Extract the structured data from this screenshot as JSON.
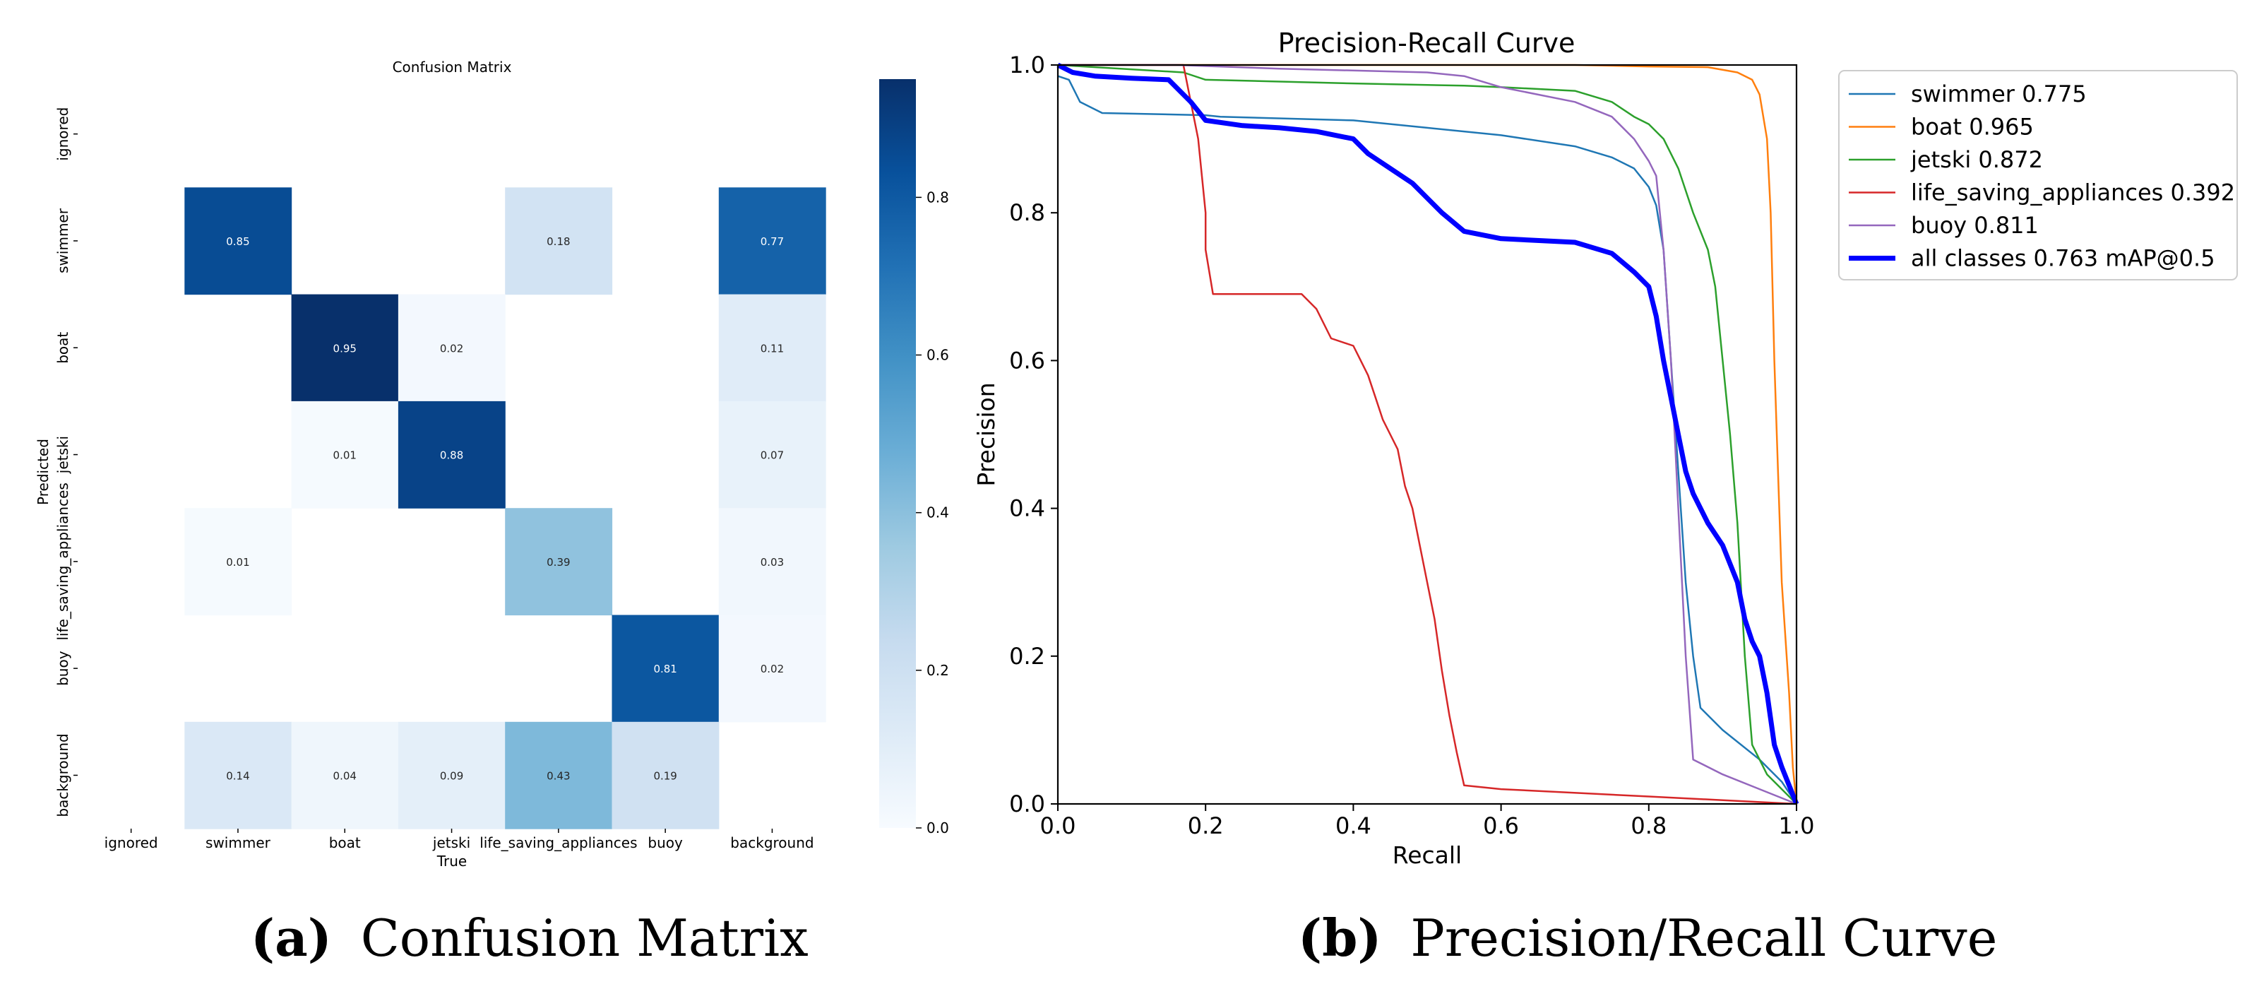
{
  "captions": {
    "a_letter": "(a)",
    "a_text": "Confusion Matrix",
    "b_letter": "(b)",
    "b_text": "Precision/Recall Curve"
  },
  "chart_data": [
    {
      "type": "heatmap",
      "title": "Confusion Matrix",
      "xlabel": "True",
      "ylabel": "Predicted",
      "x_categories": [
        "ignored",
        "swimmer",
        "boat",
        "jetski",
        "life_saving_appliances",
        "buoy",
        "background"
      ],
      "y_categories": [
        "ignored",
        "swimmer",
        "boat",
        "jetski",
        "life_saving_appliances",
        "buoy",
        "background"
      ],
      "values": [
        [
          null,
          null,
          null,
          null,
          null,
          null,
          null
        ],
        [
          null,
          0.85,
          null,
          null,
          0.18,
          null,
          0.77
        ],
        [
          null,
          null,
          0.95,
          0.02,
          null,
          null,
          0.11
        ],
        [
          null,
          null,
          0.01,
          0.88,
          null,
          null,
          0.07
        ],
        [
          null,
          0.01,
          null,
          null,
          0.39,
          null,
          0.03
        ],
        [
          null,
          null,
          null,
          null,
          null,
          0.81,
          0.02
        ],
        [
          null,
          0.14,
          0.04,
          0.09,
          0.43,
          0.19,
          null
        ]
      ],
      "value_labels": [
        [
          "",
          "",
          "",
          "",
          "",
          "",
          ""
        ],
        [
          "",
          "0.85",
          "",
          "",
          "0.18",
          "",
          "0.77"
        ],
        [
          "",
          "",
          "0.95",
          "0.02",
          "",
          "",
          "0.11"
        ],
        [
          "",
          "",
          "0.01",
          "0.88",
          "",
          "",
          "0.07"
        ],
        [
          "",
          "0.01",
          "",
          "",
          "0.39",
          "",
          "0.03"
        ],
        [
          "",
          "",
          "",
          "",
          "",
          "0.81",
          "0.02"
        ],
        [
          "",
          "0.14",
          "0.04",
          "0.09",
          "0.43",
          "0.19",
          ""
        ]
      ],
      "colorbar": {
        "range": [
          0,
          0.95
        ],
        "ticks": [
          0.0,
          0.2,
          0.4,
          0.6,
          0.8
        ],
        "tick_labels": [
          "0.0",
          "0.2",
          "0.4",
          "0.6",
          "0.8"
        ],
        "colormap": "Blues"
      }
    },
    {
      "type": "line",
      "title": "Precision-Recall Curve",
      "xlabel": "Recall",
      "ylabel": "Precision",
      "xlim": [
        0,
        1
      ],
      "ylim": [
        0,
        1
      ],
      "x_ticks": [
        0.0,
        0.2,
        0.4,
        0.6,
        0.8,
        1.0
      ],
      "x_tick_labels": [
        "0.0",
        "0.2",
        "0.4",
        "0.6",
        "0.8",
        "1.0"
      ],
      "y_ticks": [
        0.0,
        0.2,
        0.4,
        0.6,
        0.8,
        1.0
      ],
      "y_tick_labels": [
        "0.0",
        "0.2",
        "0.4",
        "0.6",
        "0.8",
        "1.0"
      ],
      "legend_placement": "outside-right-top",
      "series": [
        {
          "name": "swimmer 0.775",
          "color": "#1f77b4",
          "width": 2.5,
          "points": [
            [
              0,
              0.985
            ],
            [
              0.015,
              0.98
            ],
            [
              0.03,
              0.95
            ],
            [
              0.06,
              0.935
            ],
            [
              0.2,
              0.932
            ],
            [
              0.22,
              0.93
            ],
            [
              0.4,
              0.925
            ],
            [
              0.5,
              0.915
            ],
            [
              0.6,
              0.905
            ],
            [
              0.7,
              0.89
            ],
            [
              0.75,
              0.875
            ],
            [
              0.78,
              0.86
            ],
            [
              0.8,
              0.835
            ],
            [
              0.81,
              0.81
            ],
            [
              0.82,
              0.75
            ],
            [
              0.83,
              0.6
            ],
            [
              0.84,
              0.45
            ],
            [
              0.85,
              0.3
            ],
            [
              0.86,
              0.2
            ],
            [
              0.87,
              0.13
            ],
            [
              0.9,
              0.1
            ],
            [
              0.95,
              0.06
            ],
            [
              0.98,
              0.03
            ],
            [
              1.0,
              0.0
            ]
          ]
        },
        {
          "name": "boat 0.965",
          "color": "#ff7f0e",
          "width": 2.5,
          "points": [
            [
              0,
              1.0
            ],
            [
              0.7,
              1.0
            ],
            [
              0.8,
              0.998
            ],
            [
              0.88,
              0.997
            ],
            [
              0.92,
              0.99
            ],
            [
              0.94,
              0.98
            ],
            [
              0.95,
              0.96
            ],
            [
              0.96,
              0.9
            ],
            [
              0.965,
              0.8
            ],
            [
              0.97,
              0.6
            ],
            [
              0.975,
              0.45
            ],
            [
              0.98,
              0.3
            ],
            [
              0.99,
              0.15
            ],
            [
              0.995,
              0.05
            ],
            [
              1.0,
              0.0
            ]
          ]
        },
        {
          "name": "jetski 0.872",
          "color": "#2ca02c",
          "width": 2.5,
          "points": [
            [
              0,
              1.0
            ],
            [
              0.17,
              0.99
            ],
            [
              0.2,
              0.98
            ],
            [
              0.4,
              0.975
            ],
            [
              0.55,
              0.972
            ],
            [
              0.6,
              0.97
            ],
            [
              0.7,
              0.965
            ],
            [
              0.75,
              0.95
            ],
            [
              0.78,
              0.93
            ],
            [
              0.8,
              0.92
            ],
            [
              0.82,
              0.9
            ],
            [
              0.84,
              0.86
            ],
            [
              0.86,
              0.8
            ],
            [
              0.88,
              0.75
            ],
            [
              0.89,
              0.7
            ],
            [
              0.9,
              0.6
            ],
            [
              0.91,
              0.5
            ],
            [
              0.92,
              0.38
            ],
            [
              0.93,
              0.2
            ],
            [
              0.94,
              0.08
            ],
            [
              0.96,
              0.04
            ],
            [
              0.98,
              0.02
            ],
            [
              1.0,
              0.0
            ]
          ]
        },
        {
          "name": "life_saving_appliances 0.392",
          "color": "#d62728",
          "width": 2.5,
          "points": [
            [
              0,
              1.0
            ],
            [
              0.17,
              1.0
            ],
            [
              0.19,
              0.9
            ],
            [
              0.2,
              0.8
            ],
            [
              0.2,
              0.75
            ],
            [
              0.21,
              0.69
            ],
            [
              0.3,
              0.69
            ],
            [
              0.33,
              0.69
            ],
            [
              0.35,
              0.67
            ],
            [
              0.37,
              0.63
            ],
            [
              0.4,
              0.62
            ],
            [
              0.41,
              0.6
            ],
            [
              0.42,
              0.58
            ],
            [
              0.43,
              0.55
            ],
            [
              0.44,
              0.52
            ],
            [
              0.45,
              0.5
            ],
            [
              0.46,
              0.48
            ],
            [
              0.47,
              0.43
            ],
            [
              0.48,
              0.4
            ],
            [
              0.49,
              0.35
            ],
            [
              0.5,
              0.3
            ],
            [
              0.51,
              0.25
            ],
            [
              0.52,
              0.18
            ],
            [
              0.53,
              0.12
            ],
            [
              0.54,
              0.07
            ],
            [
              0.55,
              0.025
            ],
            [
              0.6,
              0.02
            ],
            [
              0.8,
              0.01
            ],
            [
              1.0,
              0.0
            ]
          ]
        },
        {
          "name": "buoy 0.811",
          "color": "#9467bd",
          "width": 2.5,
          "points": [
            [
              0,
              1.0
            ],
            [
              0.16,
              1.0
            ],
            [
              0.3,
              0.995
            ],
            [
              0.5,
              0.99
            ],
            [
              0.55,
              0.985
            ],
            [
              0.6,
              0.97
            ],
            [
              0.7,
              0.95
            ],
            [
              0.75,
              0.93
            ],
            [
              0.78,
              0.9
            ],
            [
              0.8,
              0.87
            ],
            [
              0.81,
              0.85
            ],
            [
              0.82,
              0.75
            ],
            [
              0.83,
              0.6
            ],
            [
              0.84,
              0.4
            ],
            [
              0.85,
              0.2
            ],
            [
              0.86,
              0.06
            ],
            [
              0.9,
              0.04
            ],
            [
              0.95,
              0.02
            ],
            [
              1.0,
              0.0
            ]
          ]
        },
        {
          "name": "all classes 0.763 mAP@0.5",
          "color": "#0000ff",
          "width": 7,
          "points": [
            [
              0,
              1.0
            ],
            [
              0.02,
              0.99
            ],
            [
              0.05,
              0.985
            ],
            [
              0.1,
              0.982
            ],
            [
              0.15,
              0.98
            ],
            [
              0.18,
              0.95
            ],
            [
              0.2,
              0.925
            ],
            [
              0.25,
              0.918
            ],
            [
              0.3,
              0.915
            ],
            [
              0.35,
              0.91
            ],
            [
              0.4,
              0.9
            ],
            [
              0.42,
              0.88
            ],
            [
              0.45,
              0.86
            ],
            [
              0.48,
              0.84
            ],
            [
              0.5,
              0.82
            ],
            [
              0.52,
              0.8
            ],
            [
              0.55,
              0.775
            ],
            [
              0.6,
              0.765
            ],
            [
              0.7,
              0.76
            ],
            [
              0.75,
              0.745
            ],
            [
              0.78,
              0.72
            ],
            [
              0.8,
              0.7
            ],
            [
              0.81,
              0.66
            ],
            [
              0.82,
              0.6
            ],
            [
              0.83,
              0.55
            ],
            [
              0.84,
              0.5
            ],
            [
              0.85,
              0.45
            ],
            [
              0.86,
              0.42
            ],
            [
              0.88,
              0.38
            ],
            [
              0.9,
              0.35
            ],
            [
              0.92,
              0.3
            ],
            [
              0.93,
              0.25
            ],
            [
              0.94,
              0.22
            ],
            [
              0.95,
              0.2
            ],
            [
              0.96,
              0.15
            ],
            [
              0.97,
              0.08
            ],
            [
              0.98,
              0.05
            ],
            [
              1.0,
              0.0
            ]
          ]
        }
      ]
    }
  ]
}
